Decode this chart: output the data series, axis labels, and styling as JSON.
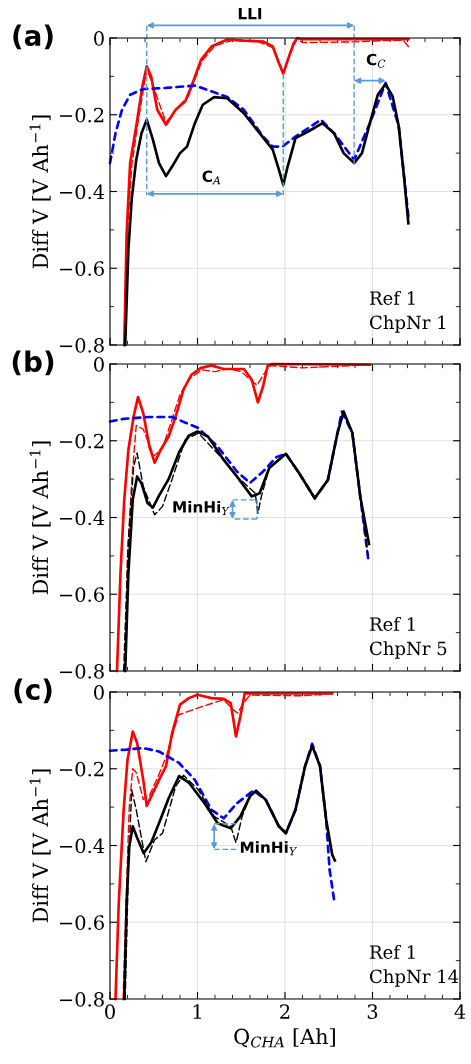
{
  "chart_data": [
    {
      "type": "line",
      "title": "(a)",
      "ylabel": "Diff V [V Ah$^{−1}$]",
      "xlim": [
        0,
        4
      ],
      "ylim": [
        -0.8,
        0
      ],
      "xticks": [
        0,
        1,
        2,
        3,
        4
      ],
      "yticks": [
        {
          "value": -0.8,
          "label": "−0.8"
        },
        {
          "value": -0.6,
          "label": "−0.6"
        },
        {
          "value": -0.4,
          "label": "−0.4"
        },
        {
          "value": -0.2,
          "label": "−0.2"
        },
        0
      ],
      "grid": true,
      "tick_labels": "y",
      "series": [
        {
          "color": "#ff0000",
          "line_style": "solid",
          "x": [
            0.163,
            0.19,
            0.23,
            0.3,
            0.37,
            0.42,
            0.47,
            0.54,
            0.64,
            0.75,
            0.86,
            0.93,
            1.04,
            1.16,
            1.34,
            1.53,
            1.75,
            1.86,
            1.93,
            1.98,
            2.04,
            2.1,
            2.14,
            2.19,
            3.41
          ],
          "values": [
            -0.8,
            -0.51,
            -0.326,
            -0.23,
            -0.126,
            -0.074,
            -0.1,
            -0.187,
            -0.226,
            -0.187,
            -0.165,
            -0.126,
            -0.057,
            -0.022,
            -0.004,
            -0.007,
            -0.009,
            -0.022,
            -0.065,
            -0.093,
            -0.052,
            -0.013,
            0,
            -0.003,
            -0.003
          ]
        },
        {
          "color": "#ff0000",
          "line_style": "dashed",
          "x": [
            0.17,
            0.2,
            0.25,
            0.32,
            0.42,
            0.5,
            0.64,
            0.78,
            0.9,
            1.05,
            1.2,
            1.4,
            1.7,
            1.86,
            1.98,
            2.08,
            2.14,
            2.2,
            2.8,
            3.2,
            3.35,
            3.41
          ],
          "values": [
            -0.8,
            -0.5,
            -0.33,
            -0.22,
            -0.08,
            -0.13,
            -0.22,
            -0.18,
            -0.15,
            -0.06,
            -0.02,
            -0.006,
            -0.01,
            -0.025,
            -0.09,
            -0.03,
            -0.002,
            -0.012,
            -0.01,
            -0.006,
            -0.006,
            -0.022
          ]
        },
        {
          "color": "#0000ff",
          "line_style": "dashed",
          "x": [
            0,
            0.063,
            0.137,
            0.23,
            0.38,
            0.64,
            0.97,
            1.16,
            1.34,
            1.53,
            1.75,
            1.86,
            1.97,
            2.12,
            2.41,
            2.56,
            2.79,
            2.97,
            3.15,
            3.3,
            3.41
          ],
          "values": [
            -0.326,
            -0.248,
            -0.187,
            -0.148,
            -0.133,
            -0.13,
            -0.124,
            -0.139,
            -0.154,
            -0.187,
            -0.257,
            -0.283,
            -0.283,
            -0.257,
            -0.213,
            -0.248,
            -0.317,
            -0.222,
            -0.117,
            -0.23,
            -0.465
          ]
        },
        {
          "color": "#000000",
          "line_style": "solid",
          "x": [
            0.174,
            0.21,
            0.248,
            0.3,
            0.36,
            0.42,
            0.49,
            0.56,
            0.64,
            0.71,
            0.8,
            0.88,
            0.97,
            1.06,
            1.19,
            1.34,
            1.53,
            1.71,
            1.86,
            1.93,
            1.98,
            2.03,
            2.12,
            2.27,
            2.43,
            2.56,
            2.67,
            2.79,
            2.88,
            2.97,
            3.06,
            3.15,
            3.23,
            3.3,
            3.36,
            3.41
          ],
          "values": [
            -0.8,
            -0.552,
            -0.42,
            -0.317,
            -0.248,
            -0.213,
            -0.265,
            -0.326,
            -0.36,
            -0.335,
            -0.3,
            -0.283,
            -0.222,
            -0.174,
            -0.154,
            -0.157,
            -0.196,
            -0.248,
            -0.291,
            -0.343,
            -0.383,
            -0.335,
            -0.261,
            -0.243,
            -0.222,
            -0.248,
            -0.3,
            -0.326,
            -0.3,
            -0.222,
            -0.148,
            -0.12,
            -0.152,
            -0.23,
            -0.361,
            -0.483
          ]
        }
      ],
      "annotations": [
        "LLI",
        "C$_{A}$",
        "C$_{C}$",
        "Ref 1\nChpNr 1"
      ]
    },
    {
      "type": "line",
      "title": "(b)",
      "ylabel": "Diff V [V Ah$^{−1}$]",
      "xlim": [
        0,
        4
      ],
      "ylim": [
        -0.8,
        0
      ],
      "xticks": [
        0,
        1,
        2,
        3,
        4
      ],
      "yticks": [
        {
          "value": -0.8,
          "label": "−0.8"
        },
        {
          "value": -0.6,
          "label": "−0.6"
        },
        {
          "value": -0.4,
          "label": "−0.4"
        },
        {
          "value": -0.2,
          "label": "−0.2"
        },
        0
      ],
      "grid": true,
      "tick_labels": "y",
      "series": [
        {
          "color": "#ff0000",
          "line_style": "solid",
          "x": [
            0.08,
            0.12,
            0.163,
            0.21,
            0.27,
            0.32,
            0.38,
            0.45,
            0.51,
            0.58,
            0.67,
            0.75,
            0.84,
            0.93,
            1.04,
            1.16,
            1.3,
            1.53,
            1.62,
            1.69,
            1.75,
            1.8,
            1.86,
            2.97
          ],
          "values": [
            -0.8,
            -0.545,
            -0.354,
            -0.224,
            -0.137,
            -0.086,
            -0.128,
            -0.215,
            -0.257,
            -0.223,
            -0.189,
            -0.137,
            -0.067,
            -0.028,
            -0.01,
            -0.004,
            -0.013,
            -0.013,
            -0.041,
            -0.1,
            -0.058,
            -0.006,
            0,
            -0.002
          ]
        },
        {
          "color": "#ff0000",
          "line_style": "dashed",
          "x": [
            0.17,
            0.2,
            0.25,
            0.3,
            0.38,
            0.5,
            0.6,
            0.7,
            0.8,
            0.9,
            1.05,
            1.2,
            1.35,
            1.5,
            1.6,
            1.68,
            1.75,
            1.82,
            2.2,
            2.97
          ],
          "values": [
            -0.8,
            -0.5,
            -0.3,
            -0.16,
            -0.17,
            -0.24,
            -0.22,
            -0.15,
            -0.08,
            -0.04,
            -0.015,
            -0.02,
            -0.012,
            -0.02,
            -0.04,
            -0.055,
            -0.03,
            -0.004,
            -0.01,
            -0.002
          ]
        },
        {
          "color": "#0000ff",
          "line_style": "dashed",
          "x": [
            0,
            0.156,
            0.45,
            0.71,
            1.01,
            1.23,
            1.45,
            1.6,
            1.75,
            1.9,
            2.01,
            2.16,
            2.34,
            2.49,
            2.65,
            2.77,
            2.86,
            2.95
          ],
          "values": [
            -0.15,
            -0.143,
            -0.138,
            -0.138,
            -0.167,
            -0.215,
            -0.28,
            -0.31,
            -0.28,
            -0.243,
            -0.234,
            -0.284,
            -0.35,
            -0.302,
            -0.124,
            -0.18,
            -0.345,
            -0.506
          ]
        },
        {
          "color": "#000000",
          "line_style": "dashed",
          "x": [
            0.156,
            0.21,
            0.27,
            0.31,
            0.38,
            0.51,
            0.6,
            0.71,
            0.86,
            1.01,
            1.3,
            1.45,
            1.66,
            1.69,
            1.73,
            1.82,
            2.01,
            2.16,
            2.34,
            2.49,
            2.6,
            2.67,
            2.77,
            2.86,
            2.95
          ],
          "values": [
            -0.8,
            -0.458,
            -0.267,
            -0.232,
            -0.319,
            -0.393,
            -0.371,
            -0.3,
            -0.197,
            -0.18,
            -0.25,
            -0.293,
            -0.337,
            -0.389,
            -0.345,
            -0.271,
            -0.234,
            -0.284,
            -0.35,
            -0.302,
            -0.18,
            -0.124,
            -0.18,
            -0.345,
            -0.503
          ]
        },
        {
          "color": "#000000",
          "line_style": "solid",
          "x": [
            0.174,
            0.21,
            0.26,
            0.31,
            0.36,
            0.43,
            0.49,
            0.56,
            0.67,
            0.79,
            0.9,
            1.0,
            1.12,
            1.3,
            1.45,
            1.62,
            1.71,
            1.82,
            2.01,
            2.16,
            2.34,
            2.49,
            2.6,
            2.67,
            2.77,
            2.86,
            2.96
          ],
          "values": [
            -0.8,
            -0.545,
            -0.354,
            -0.293,
            -0.311,
            -0.363,
            -0.374,
            -0.343,
            -0.3,
            -0.23,
            -0.187,
            -0.176,
            -0.189,
            -0.25,
            -0.293,
            -0.345,
            -0.337,
            -0.271,
            -0.234,
            -0.284,
            -0.35,
            -0.302,
            -0.18,
            -0.124,
            -0.18,
            -0.345,
            -0.469
          ]
        }
      ],
      "annotations": [
        "MinHi$_{Y}$",
        "Ref 1\nChpNr 5"
      ]
    },
    {
      "type": "line",
      "title": "(c)",
      "xlabel": "Q$_{CHA}$ [Ah]",
      "ylabel": "Diff V [V Ah$^{−1}$]",
      "xlim": [
        0,
        4
      ],
      "ylim": [
        -0.8,
        0
      ],
      "xticks": [
        0,
        1,
        2,
        3,
        4
      ],
      "yticks": [
        {
          "value": -0.8,
          "label": "−0.8"
        },
        {
          "value": -0.6,
          "label": "−0.6"
        },
        {
          "value": -0.4,
          "label": "−0.4"
        },
        {
          "value": -0.2,
          "label": "−0.2"
        },
        0
      ],
      "grid": true,
      "series": [
        {
          "color": "#ff0000",
          "line_style": "solid",
          "x": [
            0.063,
            0.1,
            0.156,
            0.2,
            0.26,
            0.31,
            0.38,
            0.42,
            0.49,
            0.58,
            0.64,
            0.71,
            0.8,
            0.9,
            1.0,
            1.16,
            1.3,
            1.38,
            1.44,
            1.49,
            1.54,
            1.6,
            2.54
          ],
          "values": [
            -0.8,
            -0.55,
            -0.307,
            -0.177,
            -0.103,
            -0.133,
            -0.229,
            -0.297,
            -0.263,
            -0.22,
            -0.194,
            -0.107,
            -0.033,
            -0.016,
            -0.007,
            -0.016,
            -0.018,
            -0.029,
            -0.116,
            -0.063,
            -0.003,
            -0.004,
            -0.004
          ]
        },
        {
          "color": "#ff0000",
          "line_style": "dashed",
          "x": [
            0.15,
            0.19,
            0.22,
            0.26,
            0.3,
            0.38,
            0.45,
            0.55,
            0.64,
            0.78,
            1.0,
            1.16,
            1.3,
            1.4,
            1.46,
            1.52,
            1.6,
            2.2,
            2.54
          ],
          "values": [
            -0.8,
            -0.5,
            -0.3,
            -0.2,
            -0.21,
            -0.28,
            -0.27,
            -0.22,
            -0.17,
            -0.06,
            -0.042,
            -0.03,
            -0.02,
            -0.045,
            -0.055,
            -0.03,
            -0.008,
            -0.01,
            -0.004
          ]
        },
        {
          "color": "#0000ff",
          "line_style": "dashed",
          "x": [
            0,
            0.19,
            0.38,
            0.56,
            0.79,
            0.97,
            1.16,
            1.3,
            1.45,
            1.64,
            1.78,
            1.93,
            2.01,
            2.12,
            2.23,
            2.31,
            2.4,
            2.47,
            2.51,
            2.56
          ],
          "values": [
            -0.153,
            -0.15,
            -0.146,
            -0.155,
            -0.185,
            -0.229,
            -0.307,
            -0.329,
            -0.29,
            -0.257,
            -0.281,
            -0.35,
            -0.368,
            -0.307,
            -0.193,
            -0.135,
            -0.193,
            -0.332,
            -0.464,
            -0.54
          ]
        },
        {
          "color": "#000000",
          "line_style": "dashed",
          "x": [
            0.174,
            0.21,
            0.248,
            0.3,
            0.41,
            0.51,
            0.6,
            0.75,
            0.84,
            1.01,
            1.19,
            1.38,
            1.44,
            1.51,
            1.6,
            1.67,
            1.78,
            1.93,
            2.01,
            2.12,
            2.23,
            2.31,
            2.4,
            2.47,
            2.54
          ],
          "values": [
            -0.8,
            -0.463,
            -0.255,
            -0.307,
            -0.442,
            -0.385,
            -0.368,
            -0.246,
            -0.217,
            -0.255,
            -0.324,
            -0.35,
            -0.393,
            -0.324,
            -0.272,
            -0.257,
            -0.281,
            -0.35,
            -0.368,
            -0.307,
            -0.193,
            -0.14,
            -0.193,
            -0.332,
            -0.424
          ]
        },
        {
          "color": "#000000",
          "line_style": "solid",
          "x": [
            0.163,
            0.19,
            0.22,
            0.26,
            0.31,
            0.385,
            0.47,
            0.56,
            0.67,
            0.79,
            0.9,
            1.08,
            1.23,
            1.38,
            1.49,
            1.6,
            1.67,
            1.78,
            1.93,
            2.01,
            2.12,
            2.23,
            2.31,
            2.4,
            2.47,
            2.54,
            2.57
          ],
          "values": [
            -0.8,
            -0.55,
            -0.403,
            -0.35,
            -0.38,
            -0.42,
            -0.393,
            -0.342,
            -0.277,
            -0.219,
            -0.236,
            -0.29,
            -0.342,
            -0.355,
            -0.324,
            -0.272,
            -0.257,
            -0.281,
            -0.35,
            -0.368,
            -0.307,
            -0.193,
            -0.14,
            -0.193,
            -0.332,
            -0.424,
            -0.439
          ]
        }
      ],
      "annotations": [
        "MinHi$_{Y}$",
        "Ref 1\nChpNr 14"
      ]
    }
  ]
}
